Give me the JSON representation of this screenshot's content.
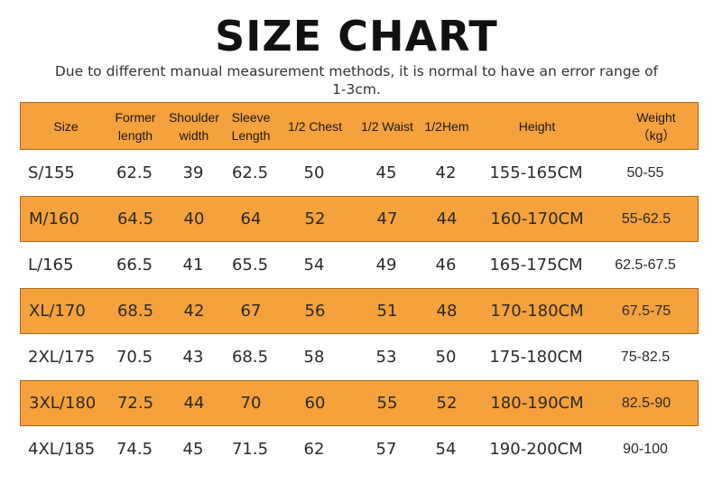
{
  "title": "SIZE CHART",
  "note": "Due to different manual measurement methods, it is normal to have an error range of 1-3cm.",
  "table": {
    "headers": [
      "Size",
      "Former\nlength",
      "Shoulder\nwidth",
      "Sleeve\nLength",
      "1/2 Chest",
      "1/2 Waist",
      "1/2Hem",
      "Height",
      "Weight\n（kg）"
    ],
    "rows": [
      [
        "S/155",
        "62.5",
        "39",
        "62.5",
        "50",
        "45",
        "42",
        "155-165CM",
        "50-55"
      ],
      [
        "M/160",
        "64.5",
        "40",
        "64",
        "52",
        "47",
        "44",
        "160-170CM",
        "55-62.5"
      ],
      [
        "L/165",
        "66.5",
        "41",
        "65.5",
        "54",
        "49",
        "46",
        "165-175CM",
        "62.5-67.5"
      ],
      [
        "XL/170",
        "68.5",
        "42",
        "67",
        "56",
        "51",
        "48",
        "170-180CM",
        "67.5-75"
      ],
      [
        "2XL/175",
        "70.5",
        "43",
        "68.5",
        "58",
        "53",
        "50",
        "175-180CM",
        "75-82.5"
      ],
      [
        "3XL/180",
        "72.5",
        "44",
        "70",
        "60",
        "55",
        "52",
        "180-190CM",
        "82.5-90"
      ],
      [
        "4XL/185",
        "74.5",
        "45",
        "71.5",
        "62",
        "57",
        "54",
        "190-200CM",
        "90-100"
      ]
    ]
  },
  "colors": {
    "header_bg": "#f5a13c",
    "highlight_bg": "#f5a13c",
    "border": "#a66a22"
  }
}
